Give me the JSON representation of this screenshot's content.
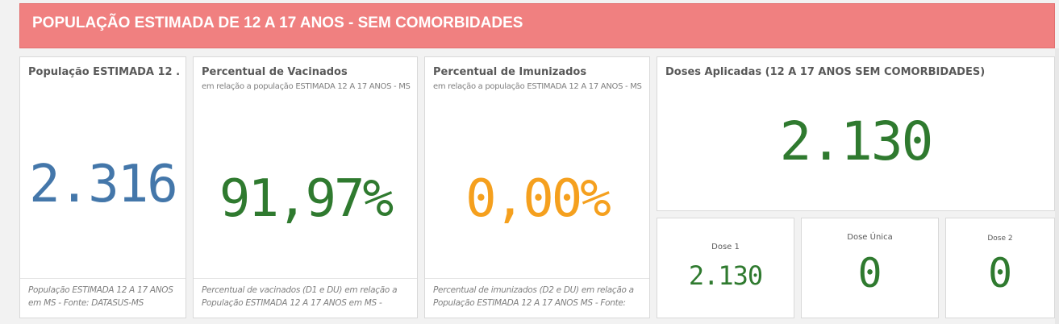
{
  "banner": {
    "title": "POPULAÇÃO ESTIMADA DE 12 A 17 ANOS - SEM COMORBIDADES"
  },
  "cards": {
    "populacao": {
      "title": "População ESTIMADA 12 ...",
      "value": "2.316",
      "footer": "População ESTIMADA 12 A 17 ANOS em MS - Fonte: DATASUS-MS"
    },
    "vacinados": {
      "title": "Percentual de Vacinados",
      "subtitle": "em relação a população ESTIMADA 12 A 17 ANOS - MS",
      "value": "91,97%",
      "footer": "Percentual de vacinados (D1 e DU) em relação a População ESTIMADA 12 A 17 ANOS em MS -"
    },
    "imunizados": {
      "title": "Percentual de Imunizados",
      "subtitle": "em relação a população ESTIMADA 12 A 17 ANOS - MS",
      "value": "0,00%",
      "footer": "Percentual de imunizados (D2 e DU) em relação a População ESTIMADA 12 A 17 ANOS MS - Fonte:"
    },
    "doses": {
      "title": "Doses Aplicadas (12 A 17 ANOS SEM COMORBIDADES)",
      "value": "2.130"
    },
    "dose1": {
      "label": "Dose 1",
      "value": "2.130"
    },
    "dose_unica": {
      "label": "Dose Única",
      "value": "0"
    },
    "dose2": {
      "label": "Dose 2",
      "value": "0"
    }
  },
  "colors": {
    "banner": "#f08080",
    "blue": "#4477aa",
    "green": "#2f7a2f",
    "orange": "#f5a01e"
  }
}
